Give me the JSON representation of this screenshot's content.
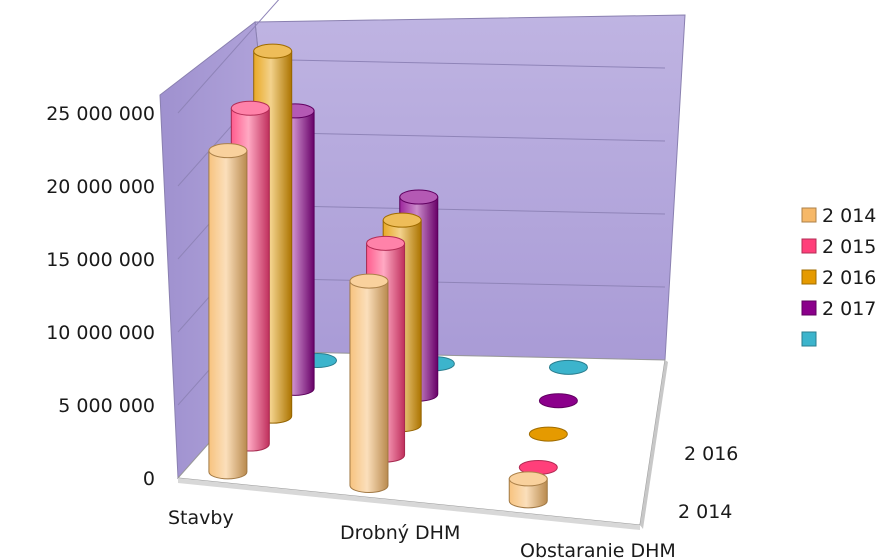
{
  "chart_data": {
    "type": "bar",
    "style": "3d-cylinder",
    "categories": [
      "Stavby",
      "Drobný DHM",
      "Obstaranie DHM"
    ],
    "depth_labels": [
      "2 014",
      "2 016"
    ],
    "series": [
      {
        "name": "2 014",
        "values": [
          22000000,
          14000000,
          1500000
        ]
      },
      {
        "name": "2 015",
        "values": [
          23000000,
          14500000,
          0
        ]
      },
      {
        "name": "2 016",
        "values": [
          25000000,
          14000000,
          0
        ]
      },
      {
        "name": "2 017",
        "values": [
          19000000,
          13500000,
          0
        ]
      },
      {
        "name": "",
        "values": [
          0,
          0,
          0
        ]
      }
    ],
    "y_ticks": [
      "0",
      "5 000 000",
      "10 000 000",
      "15 000 000",
      "20 000 000",
      "25 000 000"
    ],
    "ylim": [
      0,
      25000000
    ],
    "legend_position": "right",
    "colors": [
      "#f6b868",
      "#ff3f7a",
      "#e59a00",
      "#8b008b",
      "#3cb4cc"
    ],
    "wall_color": "#b6a9dd",
    "grid": true
  }
}
